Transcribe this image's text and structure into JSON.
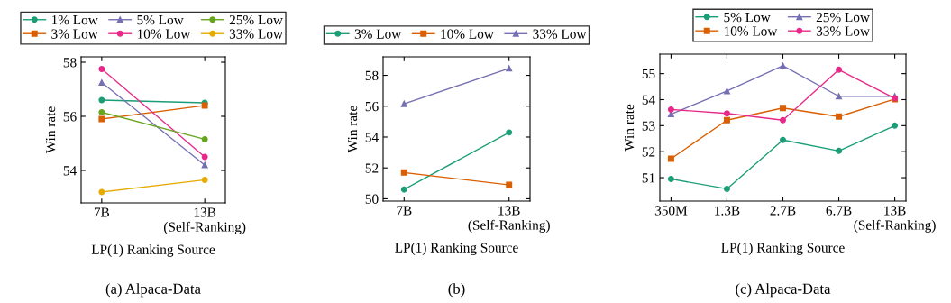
{
  "chart_data": [
    {
      "type": "line",
      "title": "(a) Alpaca-Data",
      "xlabel": "LP(1) Ranking Source",
      "ylabel": "Win rate",
      "categories": [
        "7B",
        "13B\n(Self-Ranking)"
      ],
      "ylim": [
        52.8,
        58.2
      ],
      "yticks": [
        54,
        56,
        58
      ],
      "legend": "top",
      "grid": false,
      "series": [
        {
          "name": "1% Low",
          "color": "#1b9e77",
          "marker": "circle",
          "values": [
            56.6,
            56.5
          ]
        },
        {
          "name": "3% Low",
          "color": "#d95f02",
          "marker": "square",
          "values": [
            55.9,
            56.4
          ]
        },
        {
          "name": "5% Low",
          "color": "#7570b3",
          "marker": "triangle",
          "values": [
            57.25,
            54.2
          ]
        },
        {
          "name": "10% Low",
          "color": "#e7298a",
          "marker": "circle",
          "values": [
            57.75,
            54.5
          ]
        },
        {
          "name": "25% Low",
          "color": "#66a61e",
          "marker": "circle",
          "values": [
            56.15,
            55.15
          ]
        },
        {
          "name": "33% Low",
          "color": "#e6ab02",
          "marker": "circle",
          "values": [
            53.2,
            53.65
          ]
        }
      ]
    },
    {
      "type": "line",
      "title": "(b)",
      "xlabel": "LP(1) Ranking Source",
      "ylabel": "Win rate",
      "categories": [
        "7B",
        "13B\n(Self-Ranking)"
      ],
      "ylim": [
        49.85,
        59.2
      ],
      "yticks": [
        50,
        52,
        54,
        56,
        58
      ],
      "legend": "top",
      "grid": false,
      "series": [
        {
          "name": "3% Low",
          "color": "#1b9e77",
          "marker": "circle",
          "values": [
            50.6,
            54.3
          ]
        },
        {
          "name": "10% Low",
          "color": "#d95f02",
          "marker": "square",
          "values": [
            51.7,
            50.9
          ]
        },
        {
          "name": "33% Low",
          "color": "#7570b3",
          "marker": "triangle",
          "values": [
            56.15,
            58.45
          ]
        }
      ]
    },
    {
      "type": "line",
      "title": "(c) Alpaca-Data",
      "xlabel": "LP(1) Ranking Source",
      "ylabel": "Win rate",
      "categories": [
        "350M",
        "1.3B",
        "2.7B",
        "6.7B",
        "13B\n(Self-Ranking)"
      ],
      "ylim": [
        50.1,
        55.75
      ],
      "yticks": [
        51,
        52,
        53,
        54,
        55
      ],
      "legend": "top",
      "grid": false,
      "series": [
        {
          "name": "5% Low",
          "color": "#1b9e77",
          "marker": "circle",
          "values": [
            50.95,
            50.57,
            52.45,
            52.03,
            53.0
          ]
        },
        {
          "name": "10% Low",
          "color": "#d95f02",
          "marker": "square",
          "values": [
            51.73,
            53.21,
            53.68,
            53.35,
            54.02
          ]
        },
        {
          "name": "25% Low",
          "color": "#7570b3",
          "marker": "triangle",
          "values": [
            53.44,
            54.33,
            55.3,
            54.13,
            54.13
          ]
        },
        {
          "name": "33% Low",
          "color": "#e7298a",
          "marker": "circle",
          "values": [
            53.62,
            53.47,
            53.21,
            55.15,
            54.05
          ]
        }
      ]
    }
  ]
}
